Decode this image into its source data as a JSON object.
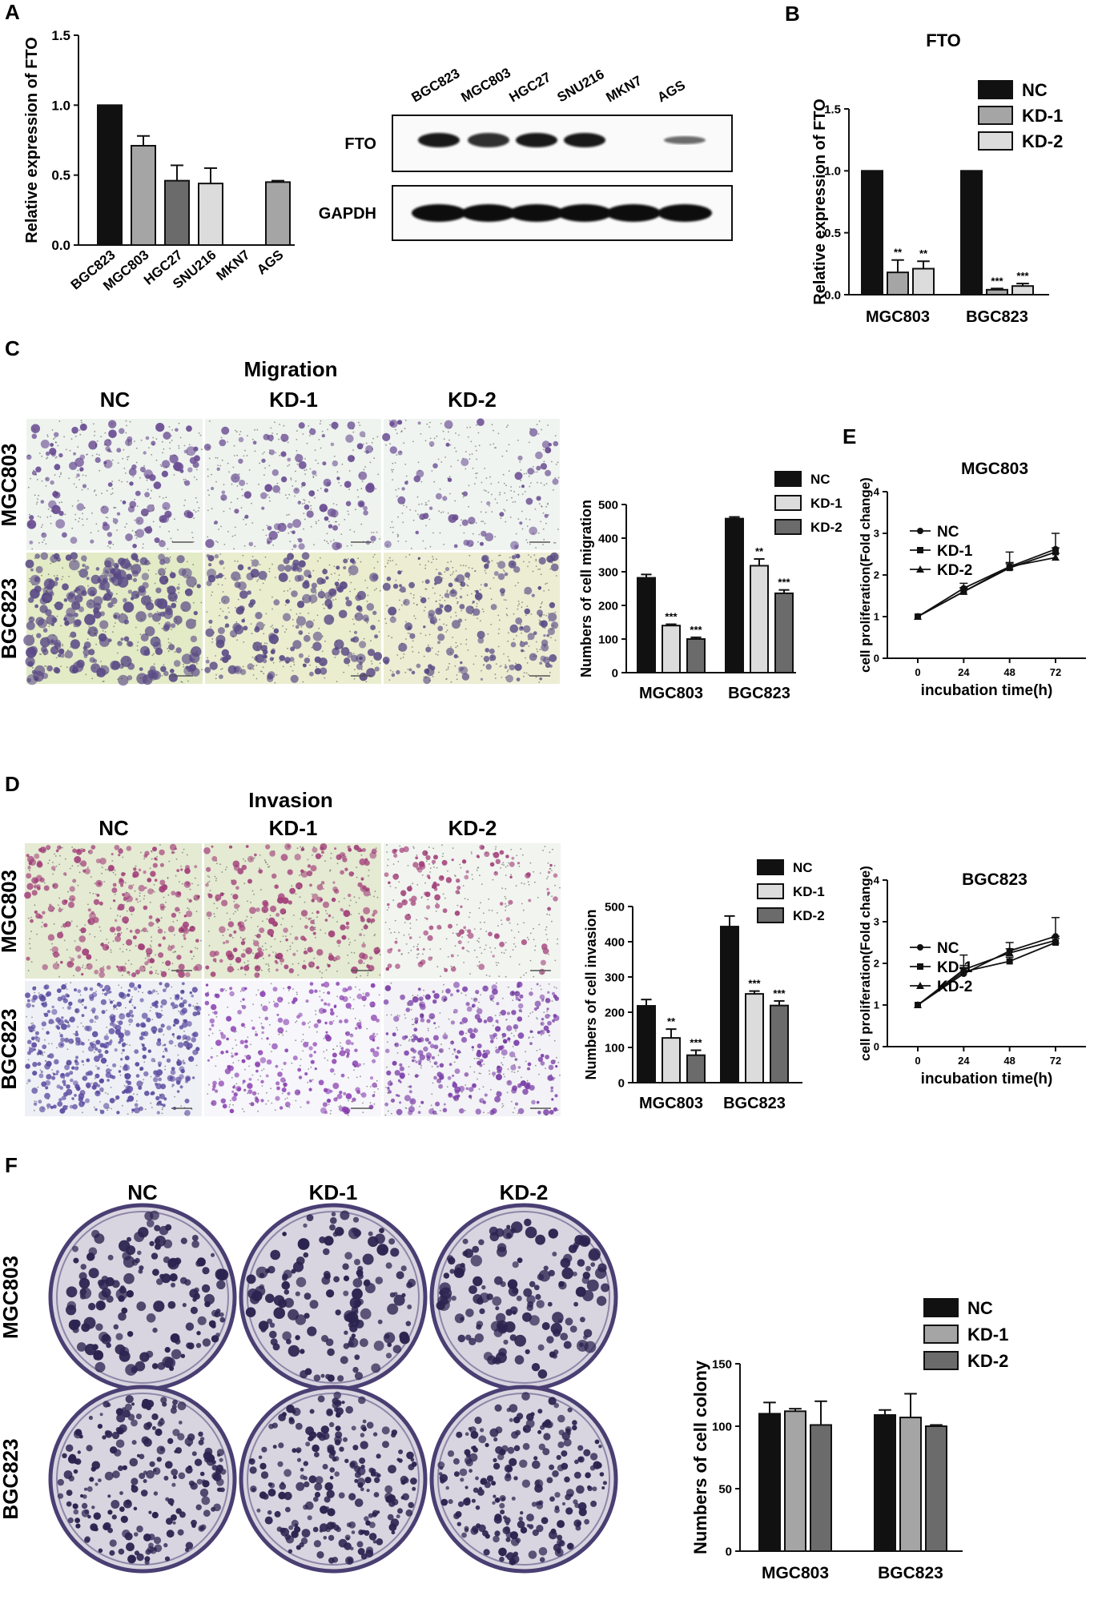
{
  "colors": {
    "black": "#111111",
    "dark_gray": "#6b6b6b",
    "mid_gray": "#a5a5a5",
    "light_gray": "#dcdcdc",
    "purple_stain": "#6a4c93",
    "magenta_stain": "#a2407a"
  },
  "panel_letters": [
    "A",
    "B",
    "C",
    "D",
    "E",
    "F"
  ],
  "panel_a": {
    "chart": {
      "type": "bar",
      "ylabel": "Relative expression of FTO",
      "ylim": [
        0,
        1.5
      ],
      "yticks": [
        "0.0",
        "0.5",
        "1.0",
        "1.5"
      ],
      "categories": [
        "BGC823",
        "MGC803",
        "HGC27",
        "SNU216",
        "MKN7",
        "AGS"
      ],
      "values": [
        1.0,
        0.71,
        0.46,
        0.44,
        0.0,
        0.45
      ],
      "errors": [
        0,
        0.07,
        0.11,
        0.11,
        0,
        0.01
      ],
      "colors": [
        "#111111",
        "#a5a5a5",
        "#6b6b6b",
        "#dcdcdc",
        "#ffffff",
        "#a5a5a5"
      ]
    },
    "blot": {
      "lanes": [
        "BGC823",
        "MGC803",
        "HGC27",
        "SNU216",
        "MKN7",
        "AGS"
      ],
      "rows": [
        {
          "label": "FTO",
          "intensities": [
            0.95,
            0.85,
            0.95,
            0.95,
            0.0,
            0.6
          ]
        },
        {
          "label": "GAPDH",
          "intensities": [
            1,
            1,
            1,
            1,
            1,
            1
          ]
        }
      ]
    }
  },
  "panel_b": {
    "chart": {
      "type": "bar",
      "title": "FTO",
      "ylabel": "Relative expression of FTO",
      "ylim": [
        0,
        1.5
      ],
      "yticks": [
        "0.0",
        "0.5",
        "1.0",
        "1.5"
      ],
      "categories": [
        "MGC803",
        "BGC823"
      ],
      "series": [
        {
          "name": "NC",
          "values": [
            1.0,
            1.0
          ],
          "errors": [
            0,
            0
          ],
          "sig": [
            "",
            ""
          ]
        },
        {
          "name": "KD-1",
          "values": [
            0.18,
            0.04
          ],
          "errors": [
            0.1,
            0.01
          ],
          "sig": [
            "**",
            "***"
          ]
        },
        {
          "name": "KD-2",
          "values": [
            0.21,
            0.07
          ],
          "errors": [
            0.06,
            0.02
          ],
          "sig": [
            "**",
            "***"
          ]
        }
      ]
    }
  },
  "panel_c": {
    "title": "Migration",
    "columns": [
      "NC",
      "KD-1",
      "KD-2"
    ],
    "rows": [
      "MGC803",
      "BGC823"
    ],
    "chart": {
      "type": "bar",
      "ylabel": "Numbers of cell migration",
      "ylim": [
        0,
        500
      ],
      "yticks": [
        "0",
        "100",
        "200",
        "300",
        "400",
        "500"
      ],
      "categories": [
        "MGC803",
        "BGC823"
      ],
      "series": [
        {
          "name": "NC",
          "values": [
            282,
            458
          ],
          "errors": [
            10,
            5
          ],
          "sig": [
            "",
            ""
          ]
        },
        {
          "name": "KD-1",
          "values": [
            140,
            318
          ],
          "errors": [
            4,
            20
          ],
          "sig": [
            "***",
            "**"
          ]
        },
        {
          "name": "KD-2",
          "values": [
            100,
            236
          ],
          "errors": [
            5,
            10
          ],
          "sig": [
            "***",
            "***"
          ]
        }
      ]
    }
  },
  "panel_d": {
    "title": "Invasion",
    "columns": [
      "NC",
      "KD-1",
      "KD-2"
    ],
    "rows": [
      "MGC803",
      "BGC823"
    ],
    "chart": {
      "type": "bar",
      "ylabel": "Numbers of cell invasion",
      "ylim": [
        0,
        500
      ],
      "yticks": [
        "0",
        "100",
        "200",
        "300",
        "400",
        "500"
      ],
      "categories": [
        "MGC803",
        "BGC823"
      ],
      "series": [
        {
          "name": "NC",
          "values": [
            218,
            443
          ],
          "errors": [
            18,
            30
          ],
          "sig": [
            "",
            ""
          ]
        },
        {
          "name": "KD-1",
          "values": [
            127,
            252
          ],
          "errors": [
            25,
            8
          ],
          "sig": [
            "**",
            "***"
          ]
        },
        {
          "name": "KD-2",
          "values": [
            78,
            219
          ],
          "errors": [
            14,
            13
          ],
          "sig": [
            "***",
            "***"
          ]
        }
      ]
    }
  },
  "panel_e": [
    {
      "type": "line",
      "title": "MGC803",
      "xlabel": "incubation time(h)",
      "ylabel": "cell proliferation(Fold change)",
      "x": [
        0,
        24,
        48,
        72
      ],
      "xticks": [
        "0",
        "24",
        "48",
        "72"
      ],
      "ylim": [
        0,
        4
      ],
      "yticks": [
        "0",
        "1",
        "2",
        "3",
        "4"
      ],
      "series": [
        {
          "name": "NC",
          "marker": "circle",
          "values": [
            1.0,
            1.68,
            2.2,
            2.62
          ],
          "errors": [
            0,
            0.12,
            0.35,
            0.38
          ]
        },
        {
          "name": "KD-1",
          "marker": "square",
          "values": [
            1.0,
            1.6,
            2.17,
            2.55
          ],
          "errors": [
            0,
            0.1,
            0.1,
            0.1
          ]
        },
        {
          "name": "KD-2",
          "marker": "triangle",
          "values": [
            1.0,
            1.6,
            2.2,
            2.42
          ],
          "errors": [
            0,
            0.08,
            0.1,
            0.1
          ]
        }
      ]
    },
    {
      "type": "line",
      "title": "BGC823",
      "xlabel": "incubation time(h)",
      "ylabel": "cell proliferation(Fold change)",
      "x": [
        0,
        24,
        48,
        72
      ],
      "xticks": [
        "0",
        "24",
        "48",
        "72"
      ],
      "ylim": [
        0,
        4
      ],
      "yticks": [
        "0",
        "1",
        "2",
        "3",
        "4"
      ],
      "series": [
        {
          "name": "NC",
          "marker": "circle",
          "values": [
            1.0,
            1.75,
            2.3,
            2.65
          ],
          "errors": [
            0,
            0.45,
            0.2,
            0.45
          ]
        },
        {
          "name": "KD-1",
          "marker": "square",
          "values": [
            1.0,
            1.8,
            2.05,
            2.5
          ],
          "errors": [
            0,
            0.1,
            0.1,
            0.1
          ]
        },
        {
          "name": "KD-2",
          "marker": "triangle",
          "values": [
            1.0,
            1.85,
            2.25,
            2.55
          ],
          "errors": [
            0,
            0.1,
            0.1,
            0.1
          ]
        }
      ]
    }
  ],
  "panel_f": {
    "columns": [
      "NC",
      "KD-1",
      "KD-2"
    ],
    "rows": [
      "MGC803",
      "BGC823"
    ],
    "chart": {
      "type": "bar",
      "ylabel": "Numbers of cell colony",
      "ylim": [
        0,
        150
      ],
      "yticks": [
        "0",
        "50",
        "100",
        "150"
      ],
      "categories": [
        "MGC803",
        "BGC823"
      ],
      "series": [
        {
          "name": "NC",
          "values": [
            110,
            109
          ],
          "errors": [
            9,
            4
          ],
          "sig": [
            "",
            ""
          ]
        },
        {
          "name": "KD-1",
          "values": [
            112,
            107
          ],
          "errors": [
            2,
            19
          ],
          "sig": [
            "",
            ""
          ]
        },
        {
          "name": "KD-2",
          "values": [
            101,
            100
          ],
          "errors": [
            19,
            1
          ],
          "sig": [
            "",
            ""
          ]
        }
      ]
    }
  }
}
